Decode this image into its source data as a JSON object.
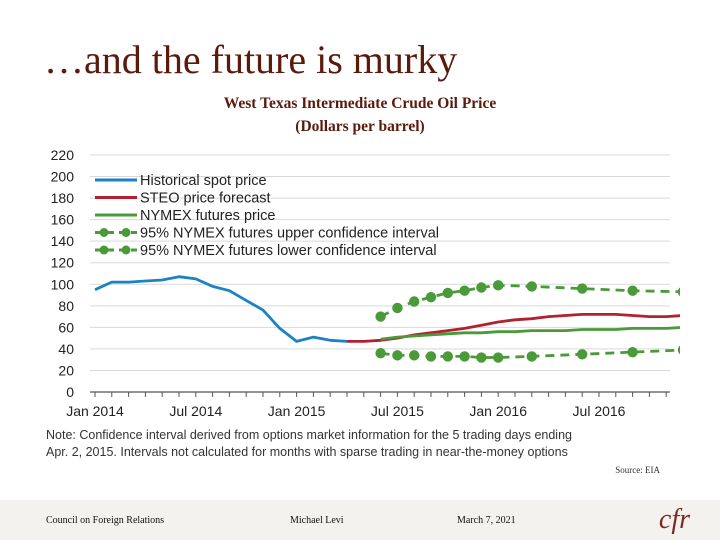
{
  "slide": {
    "title": "…and the future is murky",
    "source": "Source: EIA"
  },
  "footer": {
    "org": "Council on Foreign Relations",
    "author": "Michael Levi",
    "date": "March 7, 2021",
    "logo_text": "cfr"
  },
  "colors": {
    "title": "#5a1a0c",
    "historical": "#1b82c4",
    "steo": "#b3202f",
    "nymex": "#4a9a3a",
    "grid": "#d9d9d9"
  },
  "chart_data": {
    "type": "line",
    "title": "West Texas Intermediate Crude Oil Price",
    "subtitle": "(Dollars per barrel)",
    "ylim": [
      0,
      220
    ],
    "y_ticks": [
      0,
      20,
      40,
      60,
      80,
      100,
      120,
      140,
      160,
      180,
      200,
      220
    ],
    "x_ticks": [
      {
        "month": 0,
        "label": "Jan 2014"
      },
      {
        "month": 6,
        "label": "Jul 2014"
      },
      {
        "month": 12,
        "label": "Jan 2015"
      },
      {
        "month": 18,
        "label": "Jul 2015"
      },
      {
        "month": 24,
        "label": "Jan 2016"
      },
      {
        "month": 30,
        "label": "Jul 2016"
      }
    ],
    "x_unit_note": "months since Jan 2014",
    "xlim": [
      0,
      35
    ],
    "grid": true,
    "legend_position": "top-left",
    "series": [
      {
        "name": "Historical spot price",
        "style": "solid",
        "markers": false,
        "x": [
          0,
          1,
          2,
          3,
          4,
          5,
          6,
          7,
          8,
          9,
          10,
          11,
          12,
          13,
          14,
          15
        ],
        "y": [
          95,
          102,
          102,
          103,
          104,
          107,
          105,
          98,
          94,
          85,
          76,
          59,
          47,
          51,
          48,
          47
        ]
      },
      {
        "name": "STEO price forecast",
        "style": "solid",
        "markers": false,
        "x": [
          15,
          16,
          17,
          18,
          19,
          20,
          21,
          22,
          23,
          24,
          25,
          26,
          27,
          28,
          29,
          30,
          31,
          32,
          33,
          34,
          35
        ],
        "y": [
          47,
          47,
          48,
          50,
          53,
          55,
          57,
          59,
          62,
          65,
          67,
          68,
          70,
          71,
          72,
          72,
          72,
          71,
          70,
          70,
          71
        ]
      },
      {
        "name": "NYMEX futures price",
        "style": "solid",
        "markers": false,
        "x": [
          17,
          18,
          19,
          20,
          21,
          22,
          23,
          24,
          25,
          26,
          27,
          28,
          29,
          30,
          31,
          32,
          33,
          34,
          35
        ],
        "y": [
          49,
          51,
          52,
          53,
          54,
          55,
          55,
          56,
          56,
          57,
          57,
          57,
          58,
          58,
          58,
          59,
          59,
          59,
          60
        ]
      },
      {
        "name": "95% NYMEX futures upper confidence interval",
        "style": "dashed",
        "markers": true,
        "x": [
          17,
          18,
          19,
          20,
          21,
          22,
          23,
          24,
          26,
          29,
          32,
          35
        ],
        "y": [
          70,
          78,
          84,
          88,
          92,
          94,
          97,
          99,
          98,
          96,
          94,
          93
        ]
      },
      {
        "name": "95% NYMEX futures lower confidence interval",
        "style": "dashed",
        "markers": true,
        "x": [
          17,
          18,
          19,
          20,
          21,
          22,
          23,
          24,
          26,
          29,
          32,
          35
        ],
        "y": [
          36,
          34,
          34,
          33,
          33,
          33,
          32,
          32,
          33,
          35,
          37,
          39
        ]
      }
    ],
    "note": "Note: Confidence interval derived from options market information for the 5 trading days ending Apr. 2, 2015. Intervals not calculated for months with sparse trading in near-the-money options"
  }
}
